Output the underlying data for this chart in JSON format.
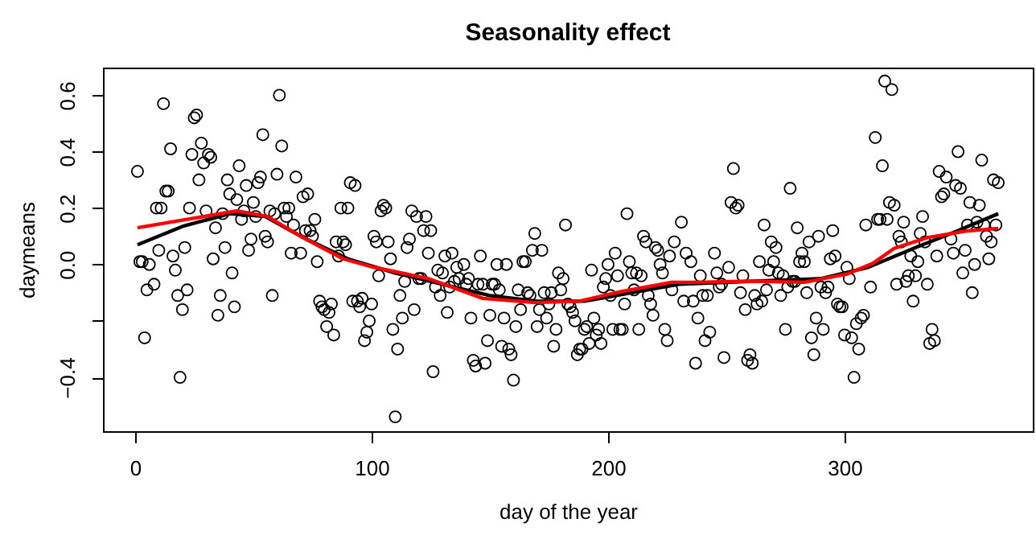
{
  "chart_data": {
    "type": "scatter",
    "title": "Seasonality effect",
    "xlabel": "day of the year",
    "ylabel": "daymeans",
    "xlim": [
      -13.6,
      379.6
    ],
    "ylim": [
      -0.591,
      0.698
    ],
    "xticks": [
      0,
      100,
      200,
      300
    ],
    "yticks": [
      {
        "value": -0.4,
        "label": "−0.4"
      },
      {
        "value": -0.2,
        "label": null
      },
      {
        "value": 0,
        "label": "0.0"
      },
      {
        "value": 0.2,
        "label": "0.2"
      },
      {
        "value": 0.4,
        "label": "0.4"
      },
      {
        "value": 0.6,
        "label": "0.6"
      }
    ],
    "grid": false,
    "series": [
      {
        "color": "#000000",
        "marker": "circle",
        "x": [
          1,
          2,
          3,
          4,
          5,
          6,
          8,
          9,
          10,
          11,
          12,
          13,
          14,
          15,
          16,
          17,
          18,
          19,
          20,
          21,
          22,
          23,
          24,
          25,
          26,
          27,
          28,
          29,
          30,
          31,
          32,
          33,
          34,
          35,
          36,
          37,
          38,
          39,
          40,
          41,
          42,
          43,
          44,
          45,
          46,
          47,
          48,
          49,
          50,
          51,
          52,
          53,
          54,
          55,
          56,
          57,
          58,
          59,
          60,
          61,
          62,
          63,
          64,
          65,
          66,
          67,
          68,
          70,
          71,
          72,
          73,
          74,
          75,
          76,
          77,
          78,
          79,
          80,
          81,
          82,
          83,
          84,
          85,
          86,
          87,
          88,
          89,
          90,
          91,
          92,
          93,
          94,
          95,
          96,
          97,
          98,
          99,
          100,
          101,
          102,
          103,
          104,
          105,
          106,
          107,
          108,
          109,
          110,
          111,
          112,
          113,
          114,
          115,
          116,
          117,
          118,
          119,
          120,
          121,
          122,
          123,
          124,
          125,
          126,
          127,
          128,
          129,
          130,
          131,
          132,
          133,
          134,
          135,
          136,
          137,
          139,
          140,
          141,
          142,
          143,
          144,
          145,
          146,
          147,
          148,
          149,
          150,
          151,
          152,
          153,
          154,
          155,
          156,
          157,
          158,
          159,
          160,
          161,
          162,
          163,
          164,
          165,
          166,
          167,
          168,
          169,
          170,
          171,
          172,
          173,
          174,
          175,
          176,
          177,
          178,
          179,
          180,
          181,
          182,
          183,
          184,
          185,
          186,
          187,
          188,
          189,
          190,
          191,
          192,
          193,
          194,
          195,
          196,
          197,
          198,
          199,
          200,
          201,
          202,
          203,
          204,
          205,
          206,
          207,
          208,
          209,
          210,
          211,
          212,
          213,
          214,
          215,
          216,
          217,
          218,
          219,
          220,
          221,
          222,
          223,
          224,
          225,
          226,
          227,
          228,
          231,
          232,
          233,
          235,
          236,
          237,
          238,
          239,
          240,
          241,
          242,
          243,
          245,
          246,
          247,
          248,
          249,
          251,
          252,
          253,
          254,
          255,
          256,
          257,
          258,
          259,
          260,
          261,
          262,
          263,
          264,
          265,
          266,
          267,
          268,
          269,
          270,
          271,
          272,
          273,
          274,
          275,
          276,
          277,
          278,
          279,
          280,
          281,
          282,
          283,
          284,
          285,
          286,
          287,
          288,
          289,
          290,
          291,
          292,
          293,
          294,
          295,
          296,
          297,
          298,
          299,
          300,
          301,
          302,
          303,
          304,
          305,
          306,
          307,
          308,
          309,
          311,
          313,
          314,
          315,
          316,
          317,
          318,
          319,
          320,
          321,
          322,
          323,
          324,
          325,
          326,
          327,
          328,
          329,
          330,
          331,
          332,
          333,
          334,
          335,
          336,
          337,
          338,
          339,
          340,
          341,
          342,
          343,
          345,
          346,
          347,
          348,
          349,
          350,
          351,
          352,
          353,
          354,
          355,
          356,
          357,
          358,
          359,
          360,
          361,
          362,
          363,
          364,
          365
        ],
        "values": [
          0.33,
          0.01,
          0.01,
          -0.26,
          -0.09,
          0.0,
          -0.07,
          0.2,
          0.05,
          0.2,
          0.57,
          0.26,
          0.26,
          0.41,
          0.03,
          -0.02,
          -0.11,
          -0.4,
          -0.16,
          0.06,
          -0.09,
          0.2,
          0.39,
          0.52,
          0.53,
          0.3,
          0.43,
          0.36,
          0.19,
          0.39,
          0.38,
          0.02,
          0.13,
          -0.18,
          -0.11,
          0.18,
          0.06,
          0.3,
          0.25,
          -0.03,
          -0.15,
          0.23,
          0.35,
          0.16,
          0.19,
          0.28,
          0.05,
          0.09,
          0.22,
          0.17,
          0.29,
          0.31,
          0.46,
          0.1,
          0.08,
          0.19,
          -0.11,
          0.18,
          0.32,
          0.6,
          0.42,
          0.2,
          0.17,
          0.2,
          0.04,
          0.14,
          0.31,
          0.04,
          0.24,
          0.12,
          0.25,
          0.12,
          0.1,
          0.16,
          0.01,
          -0.13,
          -0.15,
          -0.16,
          -0.22,
          -0.17,
          -0.14,
          -0.25,
          0.08,
          0.03,
          0.2,
          0.08,
          0.07,
          0.2,
          0.29,
          -0.13,
          0.28,
          -0.13,
          -0.15,
          -0.12,
          -0.27,
          -0.24,
          -0.2,
          -0.14,
          0.1,
          0.08,
          -0.04,
          0.19,
          0.21,
          0.2,
          0.08,
          0.02,
          -0.23,
          -0.54,
          -0.3,
          -0.11,
          -0.19,
          -0.06,
          0.06,
          0.09,
          0.19,
          -0.16,
          0.17,
          -0.05,
          -0.05,
          0.12,
          0.17,
          0.04,
          0.12,
          -0.38,
          -0.08,
          -0.02,
          -0.11,
          -0.03,
          0.03,
          -0.17,
          -0.08,
          0.04,
          -0.06,
          -0.01,
          -0.05,
          0.0,
          -0.07,
          -0.05,
          -0.19,
          -0.34,
          -0.36,
          -0.07,
          0.03,
          -0.07,
          -0.35,
          -0.27,
          -0.18,
          -0.07,
          -0.07,
          0.0,
          -0.09,
          -0.29,
          -0.19,
          0.0,
          -0.3,
          -0.32,
          -0.41,
          -0.22,
          -0.09,
          -0.16,
          0.01,
          0.01,
          -0.1,
          -0.11,
          0.05,
          0.11,
          -0.22,
          -0.16,
          0.05,
          -0.1,
          -0.19,
          -0.14,
          -0.1,
          -0.29,
          -0.23,
          -0.03,
          -0.09,
          -0.05,
          0.14,
          -0.14,
          -0.15,
          -0.17,
          -0.2,
          -0.32,
          -0.3,
          -0.3,
          -0.23,
          -0.22,
          -0.28,
          -0.02,
          -0.19,
          -0.25,
          -0.23,
          -0.28,
          -0.08,
          -0.05,
          0.0,
          -0.11,
          -0.23,
          0.04,
          -0.04,
          -0.23,
          -0.23,
          -0.14,
          0.18,
          0.01,
          -0.03,
          -0.09,
          -0.03,
          -0.23,
          -0.04,
          0.1,
          0.08,
          -0.11,
          -0.14,
          -0.18,
          0.06,
          0.05,
          0.0,
          -0.03,
          -0.23,
          -0.27,
          0.03,
          -0.09,
          0.08,
          0.15,
          -0.13,
          0.04,
          0.01,
          -0.13,
          -0.35,
          -0.19,
          -0.04,
          -0.11,
          -0.27,
          -0.11,
          -0.24,
          0.04,
          -0.03,
          -0.08,
          -0.07,
          -0.33,
          -0.01,
          0.22,
          0.34,
          0.2,
          0.21,
          -0.1,
          -0.04,
          -0.16,
          -0.34,
          -0.32,
          -0.35,
          -0.11,
          -0.14,
          0.01,
          -0.13,
          0.14,
          -0.09,
          -0.02,
          0.08,
          0.01,
          0.06,
          -0.03,
          -0.11,
          -0.04,
          -0.23,
          -0.08,
          0.27,
          -0.06,
          -0.06,
          0.13,
          0.01,
          0.04,
          0.01,
          -0.1,
          0.08,
          -0.26,
          -0.32,
          -0.19,
          0.1,
          -0.08,
          -0.23,
          -0.1,
          -0.08,
          0.02,
          0.12,
          0.03,
          -0.14,
          -0.15,
          -0.15,
          -0.25,
          -0.01,
          -0.05,
          -0.26,
          -0.4,
          -0.21,
          -0.3,
          -0.19,
          -0.18,
          0.14,
          -0.08,
          0.45,
          0.16,
          0.16,
          0.35,
          0.65,
          0.16,
          0.22,
          0.62,
          0.21,
          -0.07,
          0.1,
          0.08,
          0.15,
          -0.06,
          -0.04,
          0.03,
          -0.13,
          -0.04,
          0.01,
          0.11,
          0.17,
          0.08,
          -0.07,
          -0.28,
          -0.23,
          -0.27,
          0.03,
          0.33,
          0.24,
          0.25,
          0.31,
          0.09,
          0.04,
          0.28,
          0.4,
          0.27,
          -0.03,
          0.05,
          0.14,
          0.22,
          -0.1,
          0.0,
          0.15,
          0.21,
          0.37,
          0.14,
          0.1,
          0.02,
          0.08,
          0.3,
          0.14,
          0.29
        ]
      },
      {
        "type": "line",
        "color": "#000000",
        "marker": "none",
        "x": [
          1,
          20,
          40,
          55,
          70,
          90,
          110,
          130,
          150,
          170,
          190,
          210,
          230,
          260,
          290,
          310,
          330,
          345,
          365
        ],
        "values": [
          0.07,
          0.135,
          0.18,
          0.17,
          0.1,
          0.02,
          -0.03,
          -0.07,
          -0.11,
          -0.13,
          -0.13,
          -0.1,
          -0.07,
          -0.06,
          -0.05,
          -0.01,
          0.06,
          0.11,
          0.18
        ]
      },
      {
        "type": "line",
        "color": "#ff0000",
        "marker": "none",
        "x": [
          1,
          22,
          43,
          56,
          70,
          79,
          88,
          101,
          124,
          147,
          169,
          188,
          206,
          227,
          238,
          260,
          283,
          301,
          312,
          321,
          335,
          351,
          365
        ],
        "values": [
          0.13,
          0.16,
          0.19,
          0.17,
          0.1,
          0.06,
          0.02,
          -0.01,
          -0.05,
          -0.12,
          -0.135,
          -0.13,
          -0.095,
          -0.063,
          -0.063,
          -0.059,
          -0.063,
          -0.034,
          0.004,
          0.057,
          0.095,
          0.118,
          0.128
        ]
      }
    ]
  }
}
